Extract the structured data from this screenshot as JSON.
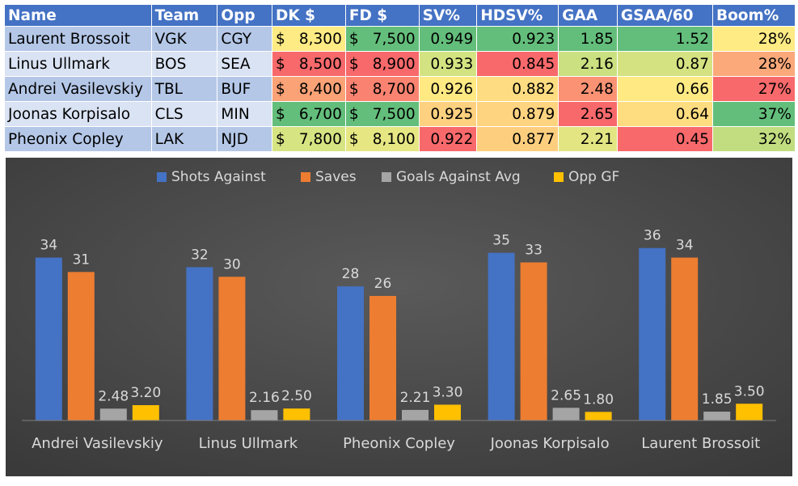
{
  "table": {
    "headers": [
      "Name",
      "Team",
      "Opp",
      "DK $",
      "FD $",
      "SV%",
      "HDSV%",
      "GAA",
      "GSAA/60",
      "Boom%"
    ],
    "rows": [
      {
        "name": "Laurent Brossoit",
        "team": "VGK",
        "opp": "CGY",
        "dk": "8,300",
        "fd": "7,500",
        "sv": "0.949",
        "hdsv": "0.923",
        "gaa": "1.85",
        "gsaa": "1.52",
        "boom": "28%"
      },
      {
        "name": "Linus Ullmark",
        "team": "BOS",
        "opp": "SEA",
        "dk": "8,500",
        "fd": "8,900",
        "sv": "0.933",
        "hdsv": "0.845",
        "gaa": "2.16",
        "gsaa": "0.87",
        "boom": "28%"
      },
      {
        "name": "Andrei Vasilevskiy",
        "team": "TBL",
        "opp": "BUF",
        "dk": "8,400",
        "fd": "8,700",
        "sv": "0.926",
        "hdsv": "0.882",
        "gaa": "2.48",
        "gsaa": "0.66",
        "boom": "27%"
      },
      {
        "name": "Joonas Korpisalo",
        "team": "CLS",
        "opp": "MIN",
        "dk": "6,700",
        "fd": "7,500",
        "sv": "0.925",
        "hdsv": "0.879",
        "gaa": "2.65",
        "gsaa": "0.64",
        "boom": "37%"
      },
      {
        "name": "Pheonix Copley",
        "team": "LAK",
        "opp": "NJD",
        "dk": "7,800",
        "fd": "8,100",
        "sv": "0.922",
        "hdsv": "0.877",
        "gaa": "2.21",
        "gsaa": "0.45",
        "boom": "32%"
      }
    ],
    "currency_symbol": "$",
    "cell_colors": {
      "dk": [
        "#ffeb84",
        "#f8696b",
        "#fba276",
        "#63be7b",
        "#d6e482"
      ],
      "fd": [
        "#63be7b",
        "#f8696b",
        "#f98370",
        "#63be7b",
        "#e6e783"
      ],
      "sv": [
        "#63be7b",
        "#d4e382",
        "#fee983",
        "#fdd17f",
        "#f8696b"
      ],
      "hdsv": [
        "#63be7b",
        "#f8696b",
        "#fedc81",
        "#fed480",
        "#fdce7e"
      ],
      "gaa": [
        "#63be7b",
        "#cbe081",
        "#fa9273",
        "#f8696b",
        "#e3e583"
      ],
      "gsaa": [
        "#63be7b",
        "#d4e282",
        "#fee983",
        "#fedc80",
        "#f8696b"
      ],
      "boom": [
        "#ffeb84",
        "#fba97a",
        "#f8696b",
        "#63be7b",
        "#c1dd80"
      ],
      "name_bands": [
        "#b4c7e7",
        "#dae3f3"
      ]
    }
  },
  "chart_data": {
    "type": "bar",
    "categories": [
      "Andrei Vasilevskiy",
      "Linus Ullmark",
      "Pheonix Copley",
      "Joonas Korpisalo",
      "Laurent Brossoit"
    ],
    "series": [
      {
        "name": "Shots Against",
        "values": [
          34,
          32,
          28,
          35,
          36
        ],
        "labels": [
          "34",
          "32",
          "28",
          "35",
          "36"
        ],
        "color": "#4472c4"
      },
      {
        "name": "Saves",
        "values": [
          31,
          30,
          26,
          33,
          34
        ],
        "labels": [
          "31",
          "30",
          "26",
          "33",
          "34"
        ],
        "color": "#ed7d31"
      },
      {
        "name": "Goals Against Avg",
        "values": [
          2.48,
          2.16,
          2.21,
          2.65,
          1.85
        ],
        "labels": [
          "2.48",
          "2.16",
          "2.21",
          "2.65",
          "1.85"
        ],
        "color": "#a5a5a5"
      },
      {
        "name": "Opp GF",
        "values": [
          3.2,
          2.5,
          3.3,
          1.8,
          3.5
        ],
        "labels": [
          "3.20",
          "2.50",
          "3.30",
          "1.80",
          "3.50"
        ],
        "color": "#ffc000"
      }
    ],
    "ylim": [
      0,
      40
    ],
    "title": "",
    "xlabel": "",
    "ylabel": "",
    "legend": "top",
    "background": "#404040",
    "text_color": "#d9d9d9"
  }
}
